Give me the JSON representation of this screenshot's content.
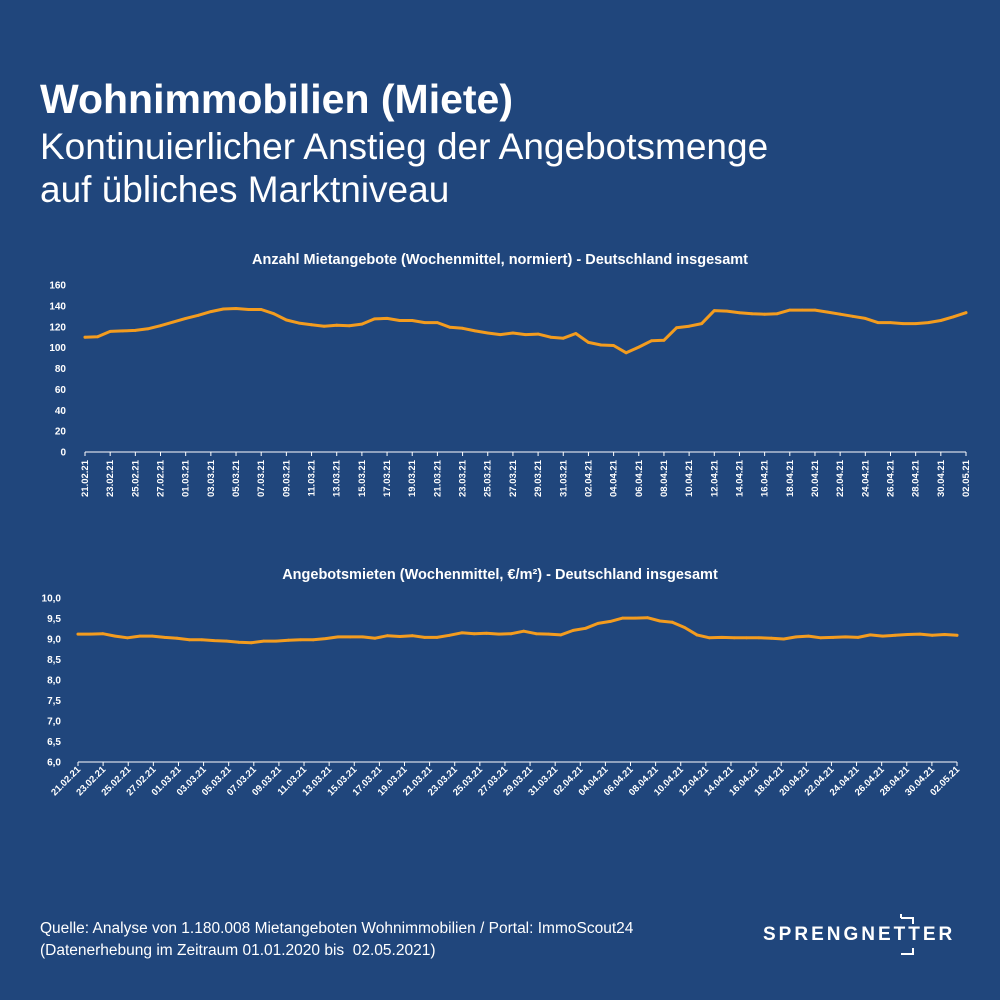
{
  "header": {
    "title": "Wohnimmobilien (Miete)",
    "subtitle_line1": "Kontinuierlicher Anstieg der Angebotsmenge",
    "subtitle_line2": "auf übliches Marktniveau"
  },
  "footer": {
    "source_line1": "Quelle: Analyse von 1.180.008 Mietangeboten Wohnimmobilien / Portal: ImmoScout24",
    "source_line2": "(Datenerhebung im Zeitraum 01.01.2020 bis  02.05.2021)"
  },
  "logo": {
    "text": "SPRENGNETTER"
  },
  "colors": {
    "background": "#20467c",
    "line": "#f39c1f",
    "text": "#ffffff"
  },
  "chart_data": [
    {
      "type": "line",
      "title": "Anzahl Mietangebote (Wochenmittel, normiert) - Deutschland insgesamt",
      "ylim": [
        0,
        160
      ],
      "yticks": [
        "0",
        "20",
        "40",
        "60",
        "80",
        "100",
        "120",
        "140",
        "160"
      ],
      "xticks": [
        "21.02.21",
        "23.02.21",
        "25.02.21",
        "27.02.21",
        "01.03.21",
        "03.03.21",
        "05.03.21",
        "07.03.21",
        "09.03.21",
        "11.03.21",
        "13.03.21",
        "15.03.21",
        "17.03.21",
        "19.03.21",
        "21.03.21",
        "23.03.21",
        "25.03.21",
        "27.03.21",
        "29.03.21",
        "31.03.21",
        "02.04.21",
        "04.04.21",
        "06.04.21",
        "08.04.21",
        "10.04.21",
        "12.04.21",
        "14.04.21",
        "16.04.21",
        "18.04.21",
        "20.04.21",
        "22.04.21",
        "24.04.21",
        "26.04.21",
        "28.04.21",
        "30.04.21",
        "02.05.21"
      ],
      "grid": false,
      "series": [
        {
          "values": [
            110,
            110.5,
            115.5,
            116,
            116.5,
            118,
            121,
            124.5,
            128,
            131,
            134.5,
            137,
            137.5,
            136.5,
            136.5,
            132.5,
            126.5,
            123.5,
            122,
            120.5,
            121.5,
            121,
            122.5,
            127.5,
            128,
            126,
            126,
            124,
            124,
            119.5,
            118.5,
            116,
            114,
            112.5,
            114,
            112.5,
            113,
            110,
            109,
            113.5,
            105,
            102.5,
            102,
            95,
            100.5,
            106.5,
            107,
            119,
            120.5,
            123,
            135.5,
            135,
            133.5,
            132.5,
            132,
            132.5,
            136,
            136,
            136,
            134,
            132,
            130,
            128,
            124,
            124,
            123,
            123,
            124,
            126,
            129.5,
            133.5
          ]
        }
      ]
    },
    {
      "type": "line",
      "title": "Angebotsmieten (Wochenmittel, €/m²) - Deutschland insgesamt",
      "ylim": [
        6.0,
        10.0
      ],
      "yticks": [
        "6,0",
        "6,5",
        "7,0",
        "7,5",
        "8,0",
        "8,5",
        "9,0",
        "9,5",
        "10,0"
      ],
      "xticks": [
        "21.02.21",
        "23.02.21",
        "25.02.21",
        "27.02.21",
        "01.03.21",
        "03.03.21",
        "05.03.21",
        "07.03.21",
        "09.03.21",
        "11.03.21",
        "13.03.21",
        "15.03.21",
        "17.03.21",
        "19.03.21",
        "21.03.21",
        "23.03.21",
        "25.03.21",
        "27.03.21",
        "29.03.21",
        "31.03.21",
        "02.04.21",
        "04.04.21",
        "06.04.21",
        "08.04.21",
        "10.04.21",
        "12.04.21",
        "14.04.21",
        "16.04.21",
        "18.04.21",
        "20.04.21",
        "22.04.21",
        "24.04.21",
        "26.04.21",
        "28.04.21",
        "30.04.21",
        "02.05.21"
      ],
      "grid": false,
      "series": [
        {
          "values": [
            9.12,
            9.12,
            9.13,
            9.07,
            9.03,
            9.07,
            9.07,
            9.04,
            9.02,
            8.98,
            8.98,
            8.96,
            8.95,
            8.92,
            8.91,
            8.95,
            8.95,
            8.97,
            8.98,
            8.98,
            9.01,
            9.05,
            9.05,
            9.05,
            9.02,
            9.08,
            9.06,
            9.08,
            9.04,
            9.04,
            9.09,
            9.15,
            9.13,
            9.14,
            9.12,
            9.13,
            9.19,
            9.13,
            9.12,
            9.1,
            9.21,
            9.26,
            9.38,
            9.43,
            9.51,
            9.51,
            9.52,
            9.44,
            9.41,
            9.28,
            9.1,
            9.03,
            9.04,
            9.03,
            9.03,
            9.03,
            9.02,
            9,
            9.05,
            9.07,
            9.03,
            9.04,
            9.05,
            9.04,
            9.1,
            9.07,
            9.09,
            9.11,
            9.12,
            9.09,
            9.11,
            9.09
          ]
        }
      ]
    }
  ]
}
